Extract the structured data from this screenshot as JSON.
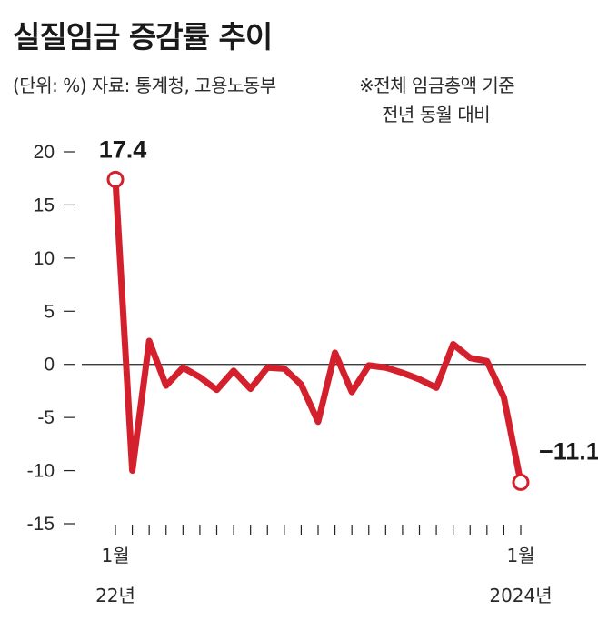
{
  "title": "실질임금 증감률 추이",
  "source_line": "(단위: %) 자료: 통계청, 고용노동부",
  "note_line1": "※전체 임금총액 기준",
  "note_line2": "전년 동월 대비",
  "colors": {
    "line": "#d4202d",
    "axis": "#222222",
    "point_fill": "#ffffff"
  },
  "chart_data": {
    "type": "line",
    "title": "실질임금 증감률 추이",
    "ylabel": "%",
    "ylim": [
      -15,
      20
    ],
    "yticks": [
      20,
      15,
      10,
      5,
      0,
      -5,
      -10,
      -15
    ],
    "ytick_labels": [
      "20",
      "15",
      "10",
      "5",
      "0",
      "-5",
      "-10",
      "-15"
    ],
    "x_start": "2022-01",
    "x_end": "2024-01",
    "x_labels": [
      {
        "index": 0,
        "line1": "1월",
        "line2": "22년"
      },
      {
        "index": 24,
        "line1": "1월",
        "line2": "2024년"
      }
    ],
    "series": [
      {
        "name": "실질임금 증감률",
        "values": [
          17.4,
          -10.0,
          2.2,
          -2.0,
          -0.3,
          -1.2,
          -2.4,
          -0.6,
          -2.3,
          -0.3,
          -0.4,
          -1.9,
          -5.4,
          1.1,
          -2.6,
          -0.1,
          -0.3,
          -0.8,
          -1.4,
          -2.2,
          1.9,
          0.6,
          0.3,
          -3.1,
          -11.1
        ]
      }
    ],
    "annotations": [
      {
        "index": 0,
        "text": "17.4"
      },
      {
        "index": 24,
        "text": "−11.1"
      }
    ]
  }
}
